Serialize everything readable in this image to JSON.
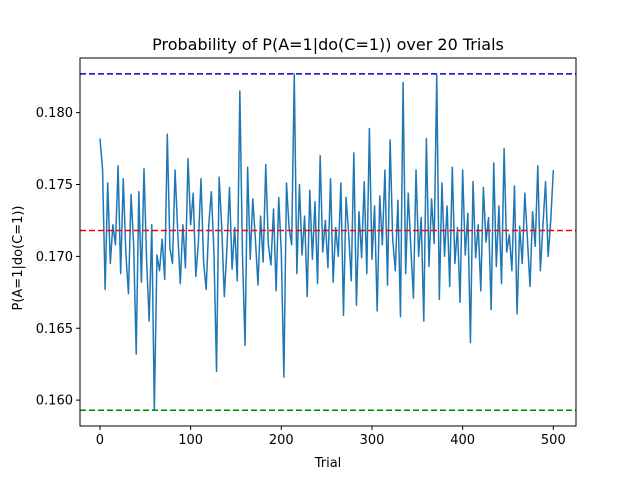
{
  "chart_data": {
    "type": "line",
    "title": "Probability of P(A=1|do(C=1)) over 20 Trials",
    "xlabel": "Trial",
    "ylabel": "P(A=1|do(C=1))",
    "xlim": [
      -22,
      525
    ],
    "ylim": [
      0.1582,
      0.1838
    ],
    "xticks": [
      0,
      100,
      200,
      300,
      400,
      500
    ],
    "yticks": [
      0.16,
      0.165,
      0.17,
      0.175,
      0.18
    ],
    "xtick_labels": [
      "0",
      "100",
      "200",
      "300",
      "400",
      "500"
    ],
    "ytick_labels": [
      "0.160",
      "0.165",
      "0.170",
      "0.175",
      "0.180"
    ],
    "grid": false,
    "series": [
      {
        "color": "#1f77b4",
        "x_start": 0,
        "x_end": 500,
        "values": [
          0.1782,
          0.1761,
          0.1677,
          0.1751,
          0.1695,
          0.1722,
          0.1708,
          0.1763,
          0.1688,
          0.1754,
          0.1702,
          0.1674,
          0.1743,
          0.1709,
          0.1632,
          0.1745,
          0.1682,
          0.1761,
          0.1698,
          0.1655,
          0.1722,
          0.1593,
          0.1701,
          0.169,
          0.1712,
          0.1684,
          0.1785,
          0.1706,
          0.1695,
          0.176,
          0.1718,
          0.1681,
          0.1722,
          0.1692,
          0.1768,
          0.1722,
          0.1744,
          0.1686,
          0.171,
          0.1754,
          0.1696,
          0.1677,
          0.1722,
          0.1745,
          0.1703,
          0.162,
          0.1755,
          0.1721,
          0.1672,
          0.1705,
          0.1748,
          0.1691,
          0.172,
          0.1683,
          0.1815,
          0.1702,
          0.1638,
          0.1762,
          0.1698,
          0.174,
          0.1712,
          0.168,
          0.1728,
          0.1696,
          0.1764,
          0.1708,
          0.1694,
          0.1733,
          0.1676,
          0.1741,
          0.1703,
          0.1616,
          0.1751,
          0.172,
          0.1708,
          0.1827,
          0.1688,
          0.175,
          0.1701,
          0.1728,
          0.1672,
          0.1746,
          0.1698,
          0.1738,
          0.1681,
          0.177,
          0.1703,
          0.1725,
          0.1692,
          0.1754,
          0.1682,
          0.172,
          0.17,
          0.1751,
          0.1659,
          0.1741,
          0.1716,
          0.1683,
          0.1772,
          0.1666,
          0.1731,
          0.1699,
          0.1752,
          0.1688,
          0.1789,
          0.1698,
          0.1735,
          0.1662,
          0.1742,
          0.1708,
          0.176,
          0.168,
          0.1781,
          0.1712,
          0.169,
          0.1739,
          0.1658,
          0.1821,
          0.1688,
          0.1744,
          0.1706,
          0.1671,
          0.176,
          0.17,
          0.1727,
          0.1655,
          0.1782,
          0.1693,
          0.174,
          0.1709,
          0.1826,
          0.167,
          0.1751,
          0.17,
          0.1735,
          0.1679,
          0.1762,
          0.1695,
          0.172,
          0.1668,
          0.176,
          0.1701,
          0.173,
          0.164,
          0.1752,
          0.1699,
          0.1722,
          0.1676,
          0.1748,
          0.171,
          0.1727,
          0.1663,
          0.1765,
          0.1693,
          0.1735,
          0.1681,
          0.1775,
          0.1703,
          0.1715,
          0.169,
          0.1749,
          0.166,
          0.1721,
          0.1695,
          0.1744,
          0.1712,
          0.1679,
          0.1731,
          0.1707,
          0.1763,
          0.169,
          0.1722,
          0.1752,
          0.17,
          0.1725,
          0.176
        ]
      }
    ],
    "reference_lines": [
      {
        "orientation": "horizontal",
        "y": 0.1827,
        "color": "#0000cc",
        "style": "dashed"
      },
      {
        "orientation": "horizontal",
        "y": 0.1718,
        "color": "#ff0000",
        "style": "dashed"
      },
      {
        "orientation": "horizontal",
        "y": 0.1593,
        "color": "#008000",
        "style": "dashed"
      }
    ]
  }
}
